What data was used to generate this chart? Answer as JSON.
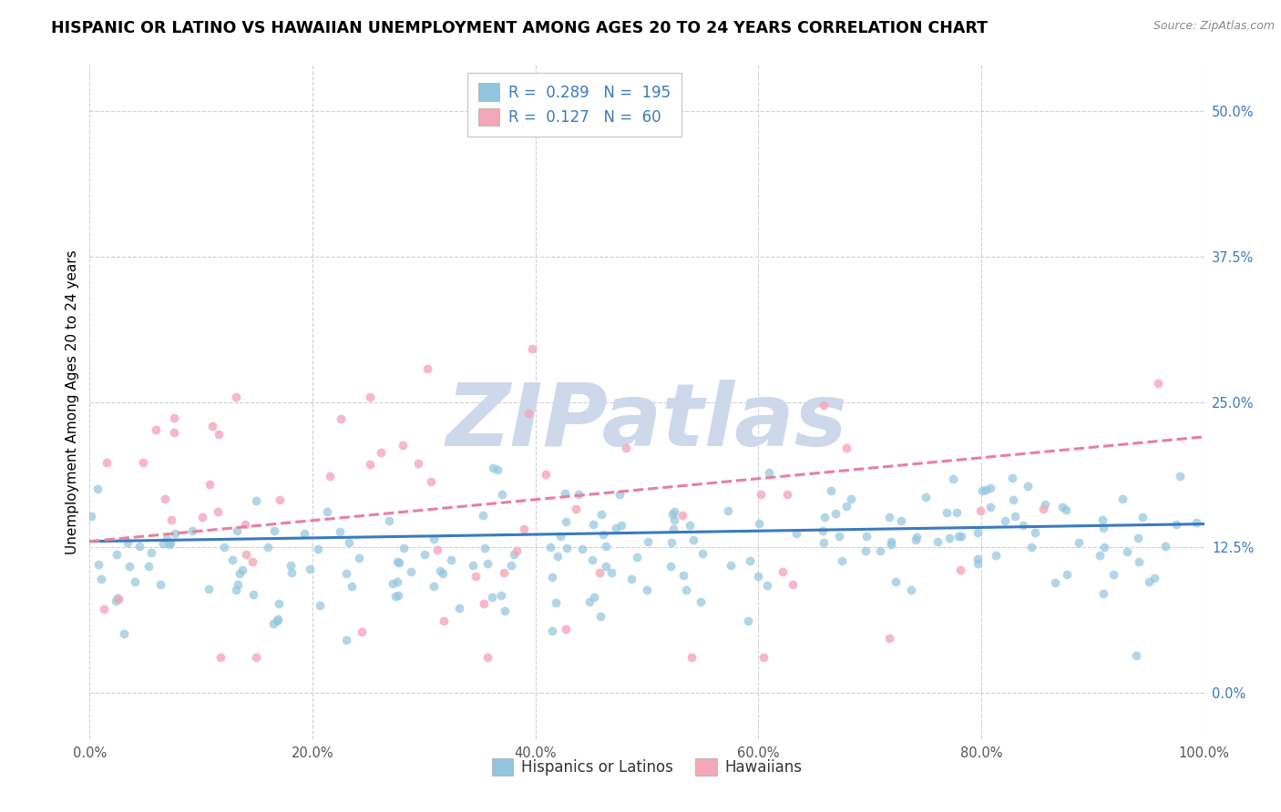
{
  "title": "HISPANIC OR LATINO VS HAWAIIAN UNEMPLOYMENT AMONG AGES 20 TO 24 YEARS CORRELATION CHART",
  "source": "Source: ZipAtlas.com",
  "ylabel": "Unemployment Among Ages 20 to 24 years",
  "legend_label1": "Hispanics or Latinos",
  "legend_label2": "Hawaiians",
  "R1": 0.289,
  "N1": 195,
  "R2": 0.127,
  "N2": 60,
  "color_blue": "#92c5de",
  "color_pink": "#f4a7b9",
  "color_blue_line": "#3a7abf",
  "color_pink_line": "#e87fa0",
  "color_blue_text": "#3a7abf",
  "xlim": [
    0,
    100
  ],
  "ylim": [
    -4,
    54
  ],
  "ytick_values": [
    0.0,
    12.5,
    25.0,
    37.5,
    50.0
  ],
  "xtick_values": [
    0,
    20,
    40,
    60,
    80,
    100
  ],
  "background_color": "#ffffff",
  "grid_color": "#d0d0d0",
  "watermark": "ZIPatlas",
  "watermark_color": "#cdd8eb",
  "title_fontsize": 12.5,
  "axis_label_fontsize": 11,
  "tick_fontsize": 10.5,
  "legend_fontsize": 12,
  "seed": 7
}
